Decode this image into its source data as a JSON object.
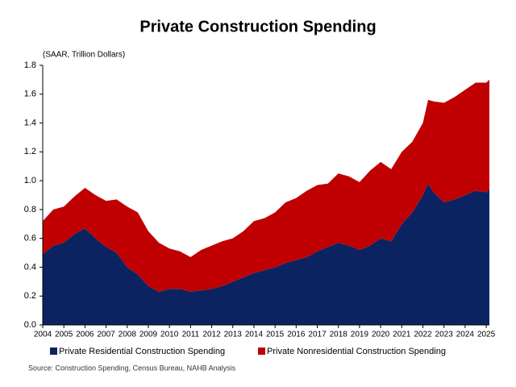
{
  "chart_data": {
    "type": "area",
    "title": "Private Construction Spending",
    "y_label": "(SAAR, Trillion Dollars)",
    "source": "Source: Construction Spending, Census Bureau, NAHB Analysis",
    "stacked": true,
    "x": [
      2004,
      2004.5,
      2005,
      2005.5,
      2006,
      2006.5,
      2007,
      2007.5,
      2008,
      2008.5,
      2009,
      2009.5,
      2010,
      2010.5,
      2011,
      2011.5,
      2012,
      2012.5,
      2013,
      2013.5,
      2014,
      2014.5,
      2015,
      2015.5,
      2016,
      2016.5,
      2017,
      2017.5,
      2018,
      2018.5,
      2019,
      2019.5,
      2020,
      2020.5,
      2021,
      2021.5,
      2022,
      2022.25,
      2022.5,
      2023,
      2023.5,
      2024,
      2024.5,
      2025,
      2025.15
    ],
    "series": [
      {
        "name": "Private Residential Construction Spending",
        "color": "#0b2461",
        "values": [
          0.49,
          0.55,
          0.57,
          0.63,
          0.67,
          0.6,
          0.54,
          0.5,
          0.4,
          0.35,
          0.27,
          0.23,
          0.25,
          0.25,
          0.23,
          0.24,
          0.25,
          0.27,
          0.3,
          0.33,
          0.36,
          0.38,
          0.4,
          0.43,
          0.45,
          0.47,
          0.51,
          0.54,
          0.57,
          0.55,
          0.52,
          0.55,
          0.6,
          0.58,
          0.7,
          0.78,
          0.9,
          0.98,
          0.92,
          0.85,
          0.87,
          0.9,
          0.93,
          0.92,
          0.94
        ]
      },
      {
        "name": "Private Nonresidential Construction Spending",
        "color": "#c00000",
        "values": [
          0.23,
          0.25,
          0.25,
          0.26,
          0.28,
          0.3,
          0.32,
          0.37,
          0.42,
          0.43,
          0.38,
          0.34,
          0.28,
          0.26,
          0.24,
          0.28,
          0.3,
          0.31,
          0.3,
          0.32,
          0.36,
          0.36,
          0.38,
          0.42,
          0.43,
          0.46,
          0.46,
          0.44,
          0.48,
          0.48,
          0.47,
          0.52,
          0.53,
          0.5,
          0.5,
          0.49,
          0.5,
          0.58,
          0.63,
          0.69,
          0.71,
          0.73,
          0.75,
          0.76,
          0.76
        ]
      }
    ],
    "xlim": [
      2004,
      2025.15
    ],
    "xticks": [
      2004,
      2005,
      2006,
      2007,
      2008,
      2009,
      2010,
      2011,
      2012,
      2013,
      2014,
      2015,
      2016,
      2017,
      2018,
      2019,
      2020,
      2021,
      2022,
      2023,
      2024,
      2025
    ],
    "ylim": [
      0,
      1.8
    ],
    "yticks": [
      {
        "value": 0,
        "label": "0.0"
      },
      {
        "value": 0.2,
        "label": "0.2"
      },
      {
        "value": 0.4,
        "label": "0.4"
      },
      {
        "value": 0.6,
        "label": "0.6"
      },
      {
        "value": 0.8,
        "label": "0.8"
      },
      {
        "value": 1,
        "label": "1.0"
      },
      {
        "value": 1.2,
        "label": "1.2"
      },
      {
        "value": 1.4,
        "label": "1.4"
      },
      {
        "value": 1.6,
        "label": "1.6"
      },
      {
        "value": 1.8,
        "label": "1.8"
      }
    ],
    "legend": "bottom"
  }
}
